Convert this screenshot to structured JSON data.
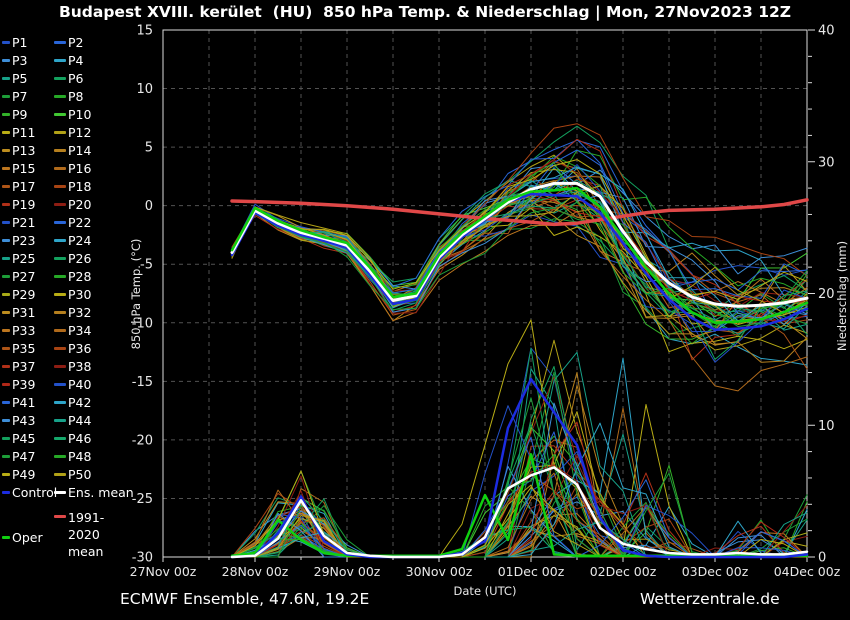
{
  "header": {
    "title": "Budapest XVIII. kerület  (HU)  850 hPa Temp. & Niederschlag | Mon, 27Nov2023 12Z"
  },
  "footer": {
    "left": "ECMWF Ensemble, 47.6N, 19.2E",
    "right": "Wetterzentrale.de"
  },
  "colors": {
    "background": "#000000",
    "axis": "#dcdcdc",
    "grid": "#525252",
    "tick_label": "#e8e8e8",
    "control": "#1c2ce0",
    "ens_mean": "#ffffff",
    "climate": "#e04848",
    "oper": "#10d010"
  },
  "legend": {
    "members": [
      {
        "label": "P1",
        "color": "#2351c8"
      },
      {
        "label": "P2",
        "color": "#2965d8"
      },
      {
        "label": "P3",
        "color": "#3e8ed8"
      },
      {
        "label": "P4",
        "color": "#2ea4c8"
      },
      {
        "label": "P5",
        "color": "#17a189"
      },
      {
        "label": "P6",
        "color": "#13a05e"
      },
      {
        "label": "P7",
        "color": "#1d9d38"
      },
      {
        "label": "P8",
        "color": "#26a826"
      },
      {
        "label": "P9",
        "color": "#33b229"
      },
      {
        "label": "P10",
        "color": "#41c832"
      },
      {
        "label": "P11",
        "color": "#b9ad15"
      },
      {
        "label": "P12",
        "color": "#b1a117"
      },
      {
        "label": "P13",
        "color": "#bd8d1f"
      },
      {
        "label": "P14",
        "color": "#b57f1e"
      },
      {
        "label": "P15",
        "color": "#bd761f"
      },
      {
        "label": "P16",
        "color": "#b06a1b"
      },
      {
        "label": "P17",
        "color": "#ae5517"
      },
      {
        "label": "P18",
        "color": "#a84413"
      },
      {
        "label": "P19",
        "color": "#b03018"
      },
      {
        "label": "P20",
        "color": "#8d1d13"
      },
      {
        "label": "P21",
        "color": "#2351c8"
      },
      {
        "label": "P22",
        "color": "#2965d8"
      },
      {
        "label": "P23",
        "color": "#3e8ed8"
      },
      {
        "label": "P24",
        "color": "#2ea4c8"
      },
      {
        "label": "P25",
        "color": "#17a189"
      },
      {
        "label": "P26",
        "color": "#13a05e"
      },
      {
        "label": "P27",
        "color": "#1d9d38"
      },
      {
        "label": "P28",
        "color": "#26a826"
      },
      {
        "label": "P29",
        "color": "#a9ab18"
      },
      {
        "label": "P30",
        "color": "#b9ad15"
      },
      {
        "label": "P31",
        "color": "#bd8d1f"
      },
      {
        "label": "P32",
        "color": "#b57f1e"
      },
      {
        "label": "P33",
        "color": "#bd761f"
      },
      {
        "label": "P34",
        "color": "#b06a1b"
      },
      {
        "label": "P35",
        "color": "#ae5517"
      },
      {
        "label": "P36",
        "color": "#a84413"
      },
      {
        "label": "P37",
        "color": "#b03018"
      },
      {
        "label": "P38",
        "color": "#8d1d13"
      },
      {
        "label": "P39",
        "color": "#b02818"
      },
      {
        "label": "P40",
        "color": "#2351c8"
      },
      {
        "label": "P41",
        "color": "#2965d8"
      },
      {
        "label": "P42",
        "color": "#2ea4c8"
      },
      {
        "label": "P43",
        "color": "#3e8ed8"
      },
      {
        "label": "P44",
        "color": "#17a189"
      },
      {
        "label": "P45",
        "color": "#13a05e"
      },
      {
        "label": "P46",
        "color": "#15a76b"
      },
      {
        "label": "P47",
        "color": "#1d9d38"
      },
      {
        "label": "P48",
        "color": "#26a826"
      },
      {
        "label": "P49",
        "color": "#b9ad15"
      },
      {
        "label": "P50",
        "color": "#b1a117"
      }
    ],
    "control": {
      "label": "Control",
      "color": "#1c2ce0"
    },
    "ens_mean": {
      "label": "Ens. mean",
      "color": "#ffffff"
    },
    "climate": {
      "label": "1991-2020 mean",
      "color": "#e04848"
    },
    "oper": {
      "label": "Oper",
      "color": "#10d010"
    }
  },
  "chart_data": {
    "type": "line",
    "title": "Budapest XVIII. kerület  (HU)  850 hPa Temp. & Niederschlag | Mon, 27Nov2023 12Z",
    "x_axis": {
      "label": "Date (UTC)",
      "tick_labels": [
        "27Nov 00z",
        "28Nov 00z",
        "29Nov 00z",
        "30Nov 00z",
        "01Dec 00z",
        "02Dec 00z",
        "03Dec 00z",
        "04Dec 00z"
      ],
      "range_hours": [
        0,
        168
      ],
      "hours_per_tick": 24,
      "gridline_every_hours": 12
    },
    "y_left": {
      "label": "850 hPa Temp. (°C)",
      "range": [
        -30,
        15
      ],
      "ticks": [
        15,
        10,
        5,
        0,
        -5,
        -10,
        -15,
        -20,
        -25,
        -30
      ],
      "unit": "°C"
    },
    "y_right": {
      "label": "Niederschlag (mm)",
      "range": [
        0,
        40
      ],
      "ticks": [
        40,
        30,
        20,
        10,
        0
      ],
      "unit": "mm"
    },
    "series": {
      "ens_mean_temp": {
        "name": "Ens. mean temperature",
        "width": 3,
        "points": [
          [
            18,
            -4.0
          ],
          [
            24,
            -0.4
          ],
          [
            30,
            -1.5
          ],
          [
            36,
            -2.3
          ],
          [
            42,
            -2.8
          ],
          [
            48,
            -3.4
          ],
          [
            54,
            -5.6
          ],
          [
            60,
            -8.1
          ],
          [
            66,
            -7.7
          ],
          [
            72,
            -4.4
          ],
          [
            78,
            -2.5
          ],
          [
            84,
            -1.1
          ],
          [
            90,
            0.3
          ],
          [
            96,
            1.4
          ],
          [
            102,
            1.9
          ],
          [
            108,
            1.9
          ],
          [
            114,
            0.8
          ],
          [
            120,
            -2.2
          ],
          [
            126,
            -4.8
          ],
          [
            132,
            -6.6
          ],
          [
            138,
            -7.8
          ],
          [
            144,
            -8.4
          ],
          [
            150,
            -8.6
          ],
          [
            156,
            -8.5
          ],
          [
            162,
            -8.3
          ],
          [
            168,
            -7.9
          ]
        ]
      },
      "control_temp": {
        "name": "Control temperature",
        "width": 2.5,
        "points": [
          [
            18,
            -4.2
          ],
          [
            24,
            -0.6
          ],
          [
            30,
            -1.7
          ],
          [
            36,
            -2.5
          ],
          [
            42,
            -3.0
          ],
          [
            48,
            -3.6
          ],
          [
            54,
            -5.9
          ],
          [
            60,
            -8.4
          ],
          [
            66,
            -8.0
          ],
          [
            72,
            -4.6
          ],
          [
            78,
            -2.7
          ],
          [
            84,
            -1.2
          ],
          [
            90,
            0.3
          ],
          [
            96,
            1.0
          ],
          [
            102,
            0.9
          ],
          [
            108,
            0.8
          ],
          [
            114,
            -0.6
          ],
          [
            120,
            -3.2
          ],
          [
            126,
            -5.8
          ],
          [
            132,
            -8.0
          ],
          [
            138,
            -9.6
          ],
          [
            144,
            -10.6
          ],
          [
            150,
            -10.5
          ],
          [
            156,
            -10.3
          ],
          [
            162,
            -9.7
          ],
          [
            168,
            -8.8
          ]
        ]
      },
      "oper_temp": {
        "name": "Operational temperature",
        "width": 2.5,
        "points": [
          [
            18,
            -3.8
          ],
          [
            24,
            -0.2
          ],
          [
            30,
            -1.3
          ],
          [
            36,
            -2.1
          ],
          [
            42,
            -2.7
          ],
          [
            48,
            -3.2
          ],
          [
            54,
            -5.3
          ],
          [
            60,
            -7.8
          ],
          [
            66,
            -7.5
          ],
          [
            72,
            -4.2
          ],
          [
            78,
            -2.3
          ],
          [
            84,
            -0.9
          ],
          [
            90,
            0.5
          ],
          [
            96,
            1.2
          ],
          [
            102,
            1.3
          ],
          [
            108,
            1.5
          ],
          [
            114,
            -0.1
          ],
          [
            120,
            -2.7
          ],
          [
            126,
            -5.3
          ],
          [
            132,
            -7.5
          ],
          [
            138,
            -9.1
          ],
          [
            144,
            -10.0
          ],
          [
            150,
            -9.9
          ],
          [
            156,
            -9.7
          ],
          [
            162,
            -9.1
          ],
          [
            168,
            -8.3
          ]
        ]
      },
      "climate_temp": {
        "name": "1991-2020 mean temperature",
        "width": 3.5,
        "points": [
          [
            18,
            0.4
          ],
          [
            24,
            0.35
          ],
          [
            36,
            0.2
          ],
          [
            48,
            0.0
          ],
          [
            60,
            -0.3
          ],
          [
            72,
            -0.7
          ],
          [
            84,
            -1.1
          ],
          [
            96,
            -1.4
          ],
          [
            102,
            -1.6
          ],
          [
            108,
            -1.5
          ],
          [
            114,
            -1.2
          ],
          [
            120,
            -0.9
          ],
          [
            126,
            -0.6
          ],
          [
            132,
            -0.4
          ],
          [
            144,
            -0.3
          ],
          [
            156,
            -0.1
          ],
          [
            162,
            0.1
          ],
          [
            168,
            0.5
          ]
        ]
      },
      "ens_mean_precip": {
        "name": "Ens. mean precipitation",
        "width": 2.5,
        "points": [
          [
            18,
            0
          ],
          [
            24,
            0.1
          ],
          [
            30,
            1.4
          ],
          [
            36,
            4.3
          ],
          [
            42,
            1.6
          ],
          [
            48,
            0.3
          ],
          [
            54,
            0.1
          ],
          [
            60,
            0
          ],
          [
            66,
            0
          ],
          [
            72,
            0
          ],
          [
            78,
            0.2
          ],
          [
            84,
            1.5
          ],
          [
            90,
            5.2
          ],
          [
            96,
            6.2
          ],
          [
            102,
            6.8
          ],
          [
            108,
            5.5
          ],
          [
            114,
            2.2
          ],
          [
            120,
            1.0
          ],
          [
            126,
            0.6
          ],
          [
            132,
            0.3
          ],
          [
            138,
            0.2
          ],
          [
            144,
            0.2
          ],
          [
            150,
            0.3
          ],
          [
            156,
            0.2
          ],
          [
            162,
            0.2
          ],
          [
            168,
            0.4
          ]
        ]
      },
      "control_precip": {
        "name": "Control precipitation",
        "width": 2.5,
        "points": [
          [
            18,
            0
          ],
          [
            24,
            0.1
          ],
          [
            30,
            1.8
          ],
          [
            36,
            4.6
          ],
          [
            42,
            1.2
          ],
          [
            48,
            0.2
          ],
          [
            54,
            0
          ],
          [
            60,
            0
          ],
          [
            66,
            0
          ],
          [
            72,
            0
          ],
          [
            78,
            0.3
          ],
          [
            84,
            1.2
          ],
          [
            90,
            9.8
          ],
          [
            96,
            13.5
          ],
          [
            102,
            11.0
          ],
          [
            108,
            8.5
          ],
          [
            114,
            3.0
          ],
          [
            120,
            0.5
          ],
          [
            126,
            0.1
          ],
          [
            132,
            0
          ],
          [
            138,
            0
          ],
          [
            144,
            0
          ],
          [
            150,
            0
          ],
          [
            156,
            0
          ],
          [
            162,
            0
          ],
          [
            168,
            0.2
          ]
        ]
      },
      "oper_precip": {
        "name": "Operational precipitation",
        "width": 2.5,
        "points": [
          [
            18,
            0
          ],
          [
            24,
            0.2
          ],
          [
            30,
            2.7
          ],
          [
            36,
            1.2
          ],
          [
            42,
            0.2
          ],
          [
            48,
            0
          ],
          [
            54,
            0
          ],
          [
            60,
            0
          ],
          [
            66,
            0
          ],
          [
            72,
            0
          ],
          [
            78,
            0.5
          ],
          [
            84,
            4.6
          ],
          [
            90,
            1.2
          ],
          [
            96,
            7.7
          ],
          [
            102,
            0.1
          ],
          [
            108,
            0
          ],
          [
            114,
            0
          ],
          [
            120,
            0
          ],
          [
            126,
            0
          ],
          [
            132,
            0
          ],
          [
            138,
            0
          ],
          [
            144,
            0
          ],
          [
            150,
            0
          ],
          [
            156,
            0
          ],
          [
            162,
            0
          ],
          [
            168,
            0
          ]
        ]
      }
    },
    "ensemble": {
      "count": 50,
      "start_hour": 18,
      "end_hour": 168,
      "step_hours": 6,
      "seed": 13,
      "temp_sigma_envelope": [
        [
          18,
          0.25
        ],
        [
          24,
          0.35
        ],
        [
          36,
          0.55
        ],
        [
          48,
          0.75
        ],
        [
          60,
          1.0
        ],
        [
          72,
          1.0
        ],
        [
          84,
          1.5
        ],
        [
          96,
          2.3
        ],
        [
          108,
          3.2
        ],
        [
          120,
          3.5
        ],
        [
          132,
          3.6
        ],
        [
          144,
          3.3
        ],
        [
          156,
          3.0
        ],
        [
          168,
          2.9
        ]
      ],
      "temp_clamp": [
        -16.5,
        11.2
      ],
      "precip_clamp_max": 18,
      "precip_events": [
        {
          "t0": 24,
          "t1": 51,
          "tp": [
            32,
            40
          ],
          "w": [
            8,
            14
          ],
          "peak": [
            1.2,
            6.3
          ],
          "prob": 1.0,
          "pow": 0.8
        },
        {
          "t0": 78,
          "t1": 126,
          "tp": [
            90,
            112
          ],
          "w": [
            9,
            20
          ],
          "peak": [
            2.5,
            16.5
          ],
          "prob": 1.0,
          "pow": 1.2,
          "force_member": 24
        },
        {
          "t0": 114,
          "t1": 140,
          "tp": [
            120,
            132
          ],
          "w": [
            6,
            12
          ],
          "peak": [
            1.0,
            11.0
          ],
          "prob": 0.5,
          "pow": 2.0,
          "force_member": 23
        },
        {
          "t0": 140,
          "t1": 166,
          "tp": [
            146,
            160
          ],
          "w": [
            6,
            12
          ],
          "peak": [
            0.5,
            3.0
          ],
          "prob": 0.35,
          "pow": 1.0
        },
        {
          "t0": 156,
          "t1": 168,
          "tp": [
            164,
            170
          ],
          "w": [
            6,
            10
          ],
          "peak": [
            1.0,
            5.5
          ],
          "prob": 0.18,
          "pow": 1.0,
          "force_member": 37
        }
      ]
    }
  }
}
